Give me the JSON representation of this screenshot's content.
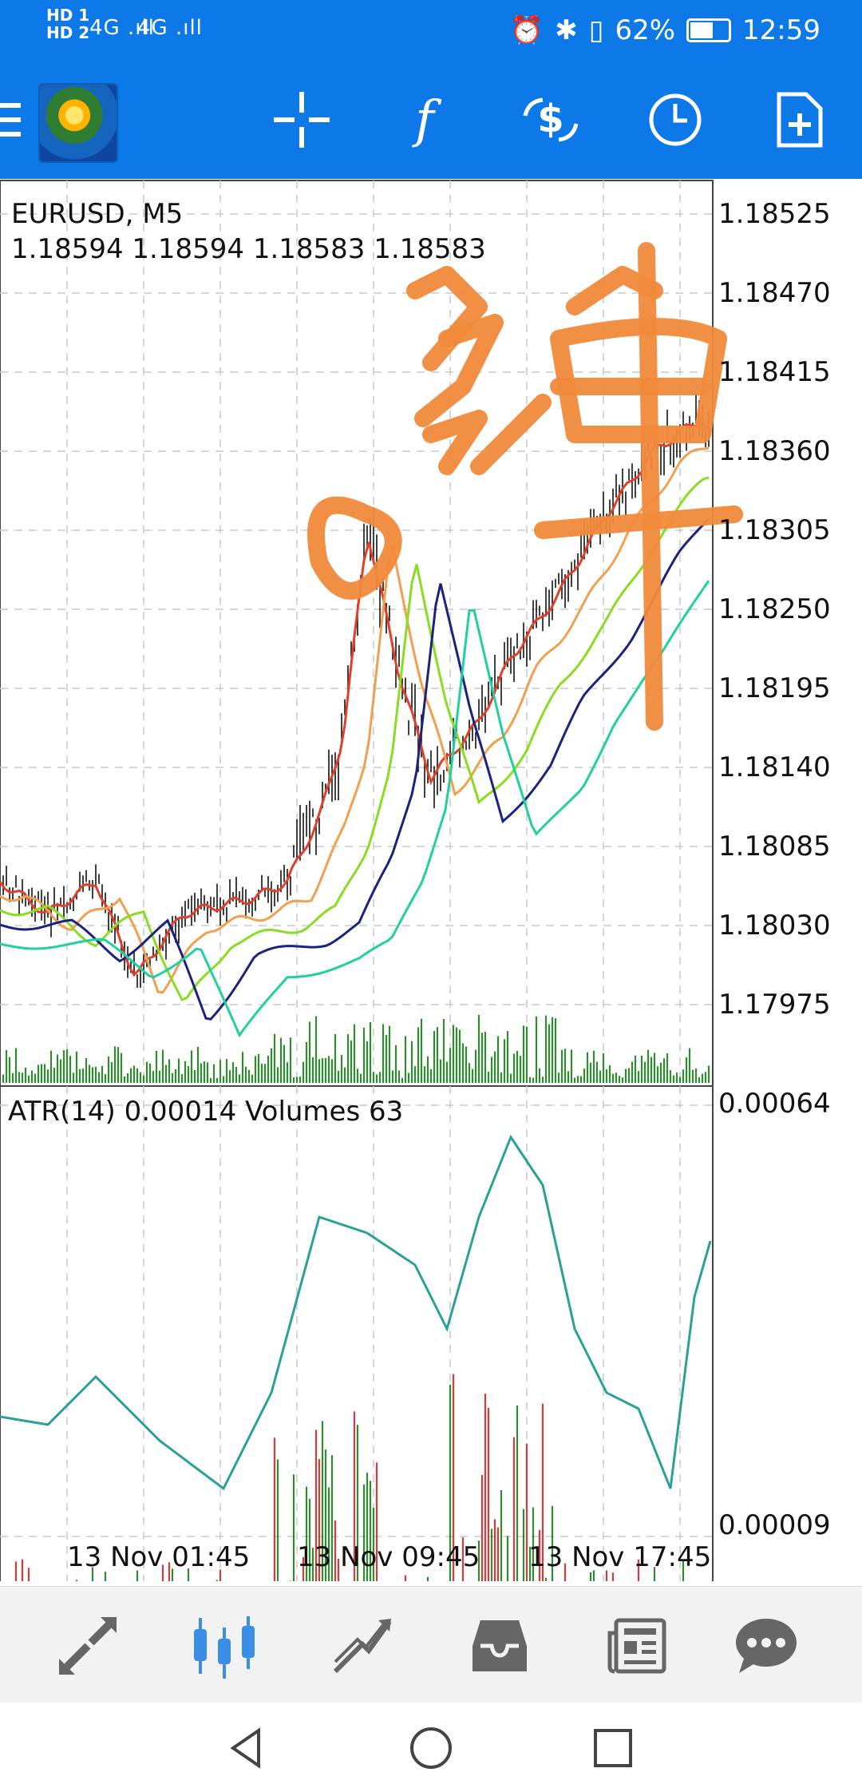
{
  "status_bar": {
    "hd1": "HD 1",
    "hd2": "HD 2",
    "signal1": "4G .ıll",
    "signal2": "4G .ıll",
    "battery": "62%",
    "time": "12:59"
  },
  "toolbar": {
    "icons": [
      "menu-icon",
      "app-logo",
      "crosshair-icon",
      "function-icon",
      "trade-icon",
      "clock-icon",
      "new-document-icon"
    ]
  },
  "chart": {
    "symbol": "EURUSD, M5",
    "ohlc": "1.18594 1.18594 1.18583 1.18583",
    "price_ticks": [
      "1.18525",
      "1.18470",
      "1.18415",
      "1.18360",
      "1.18305",
      "1.18250",
      "1.18195",
      "1.18140",
      "1.18085",
      "1.18030",
      "1.17975"
    ],
    "indicator_label": "ATR(14) 0.00014 Volumes 63",
    "indicator_ticks": [
      "0.00064",
      "0.00009"
    ],
    "time_ticks": [
      "13 Nov 01:45",
      "13 Nov 09:45",
      "13 Nov 17:45"
    ],
    "colors": {
      "candle": "#111111",
      "ma_red": "#e0402a",
      "ma_orange": "#f0a050",
      "ma_lime": "#88dd22",
      "ma_navy": "#1a237e",
      "ma_teal": "#20d0a0",
      "atr": "#2aa198",
      "vol_green": "#2e8b2e",
      "vol_red": "#d63a3a",
      "handwriting": "#f08a3a"
    }
  },
  "bottom_nav": {
    "items": [
      "quotes-icon",
      "chart-icon",
      "trade-icon",
      "history-icon",
      "news-icon",
      "chat-icon"
    ]
  },
  "android_nav": {
    "items": [
      "back-icon",
      "home-icon",
      "recents-icon"
    ]
  }
}
